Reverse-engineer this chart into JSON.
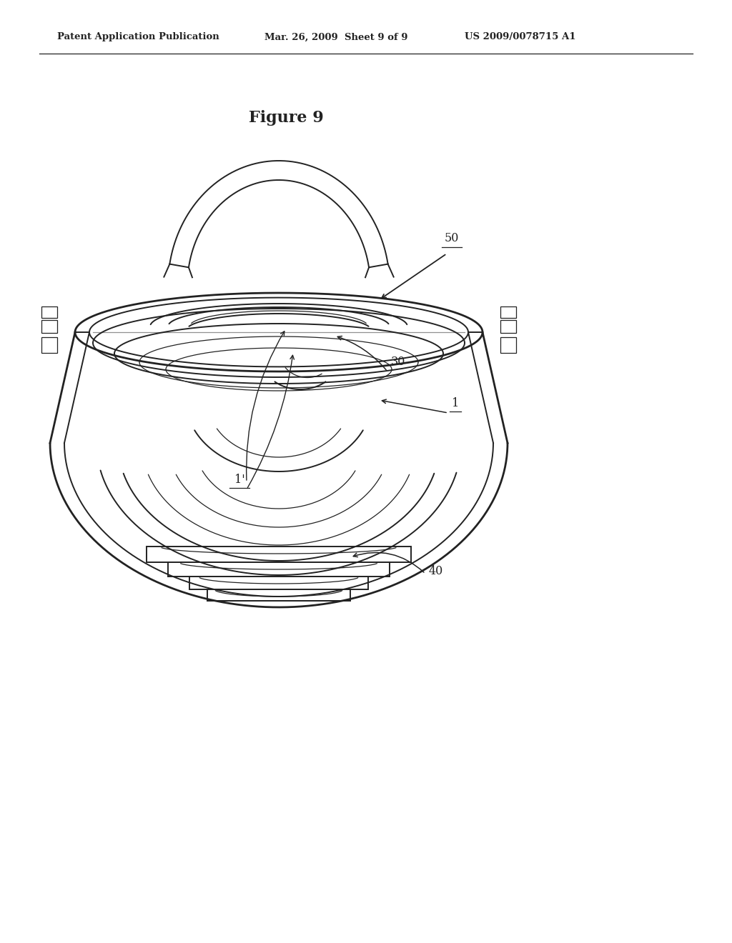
{
  "bg_color": "#ffffff",
  "line_color": "#222222",
  "header_left": "Patent Application Publication",
  "header_center": "Mar. 26, 2009  Sheet 9 of 9",
  "header_right": "US 2009/0078715 A1",
  "title": "Figure 9",
  "figsize": [
    10.24,
    13.2
  ],
  "dpi": 100
}
